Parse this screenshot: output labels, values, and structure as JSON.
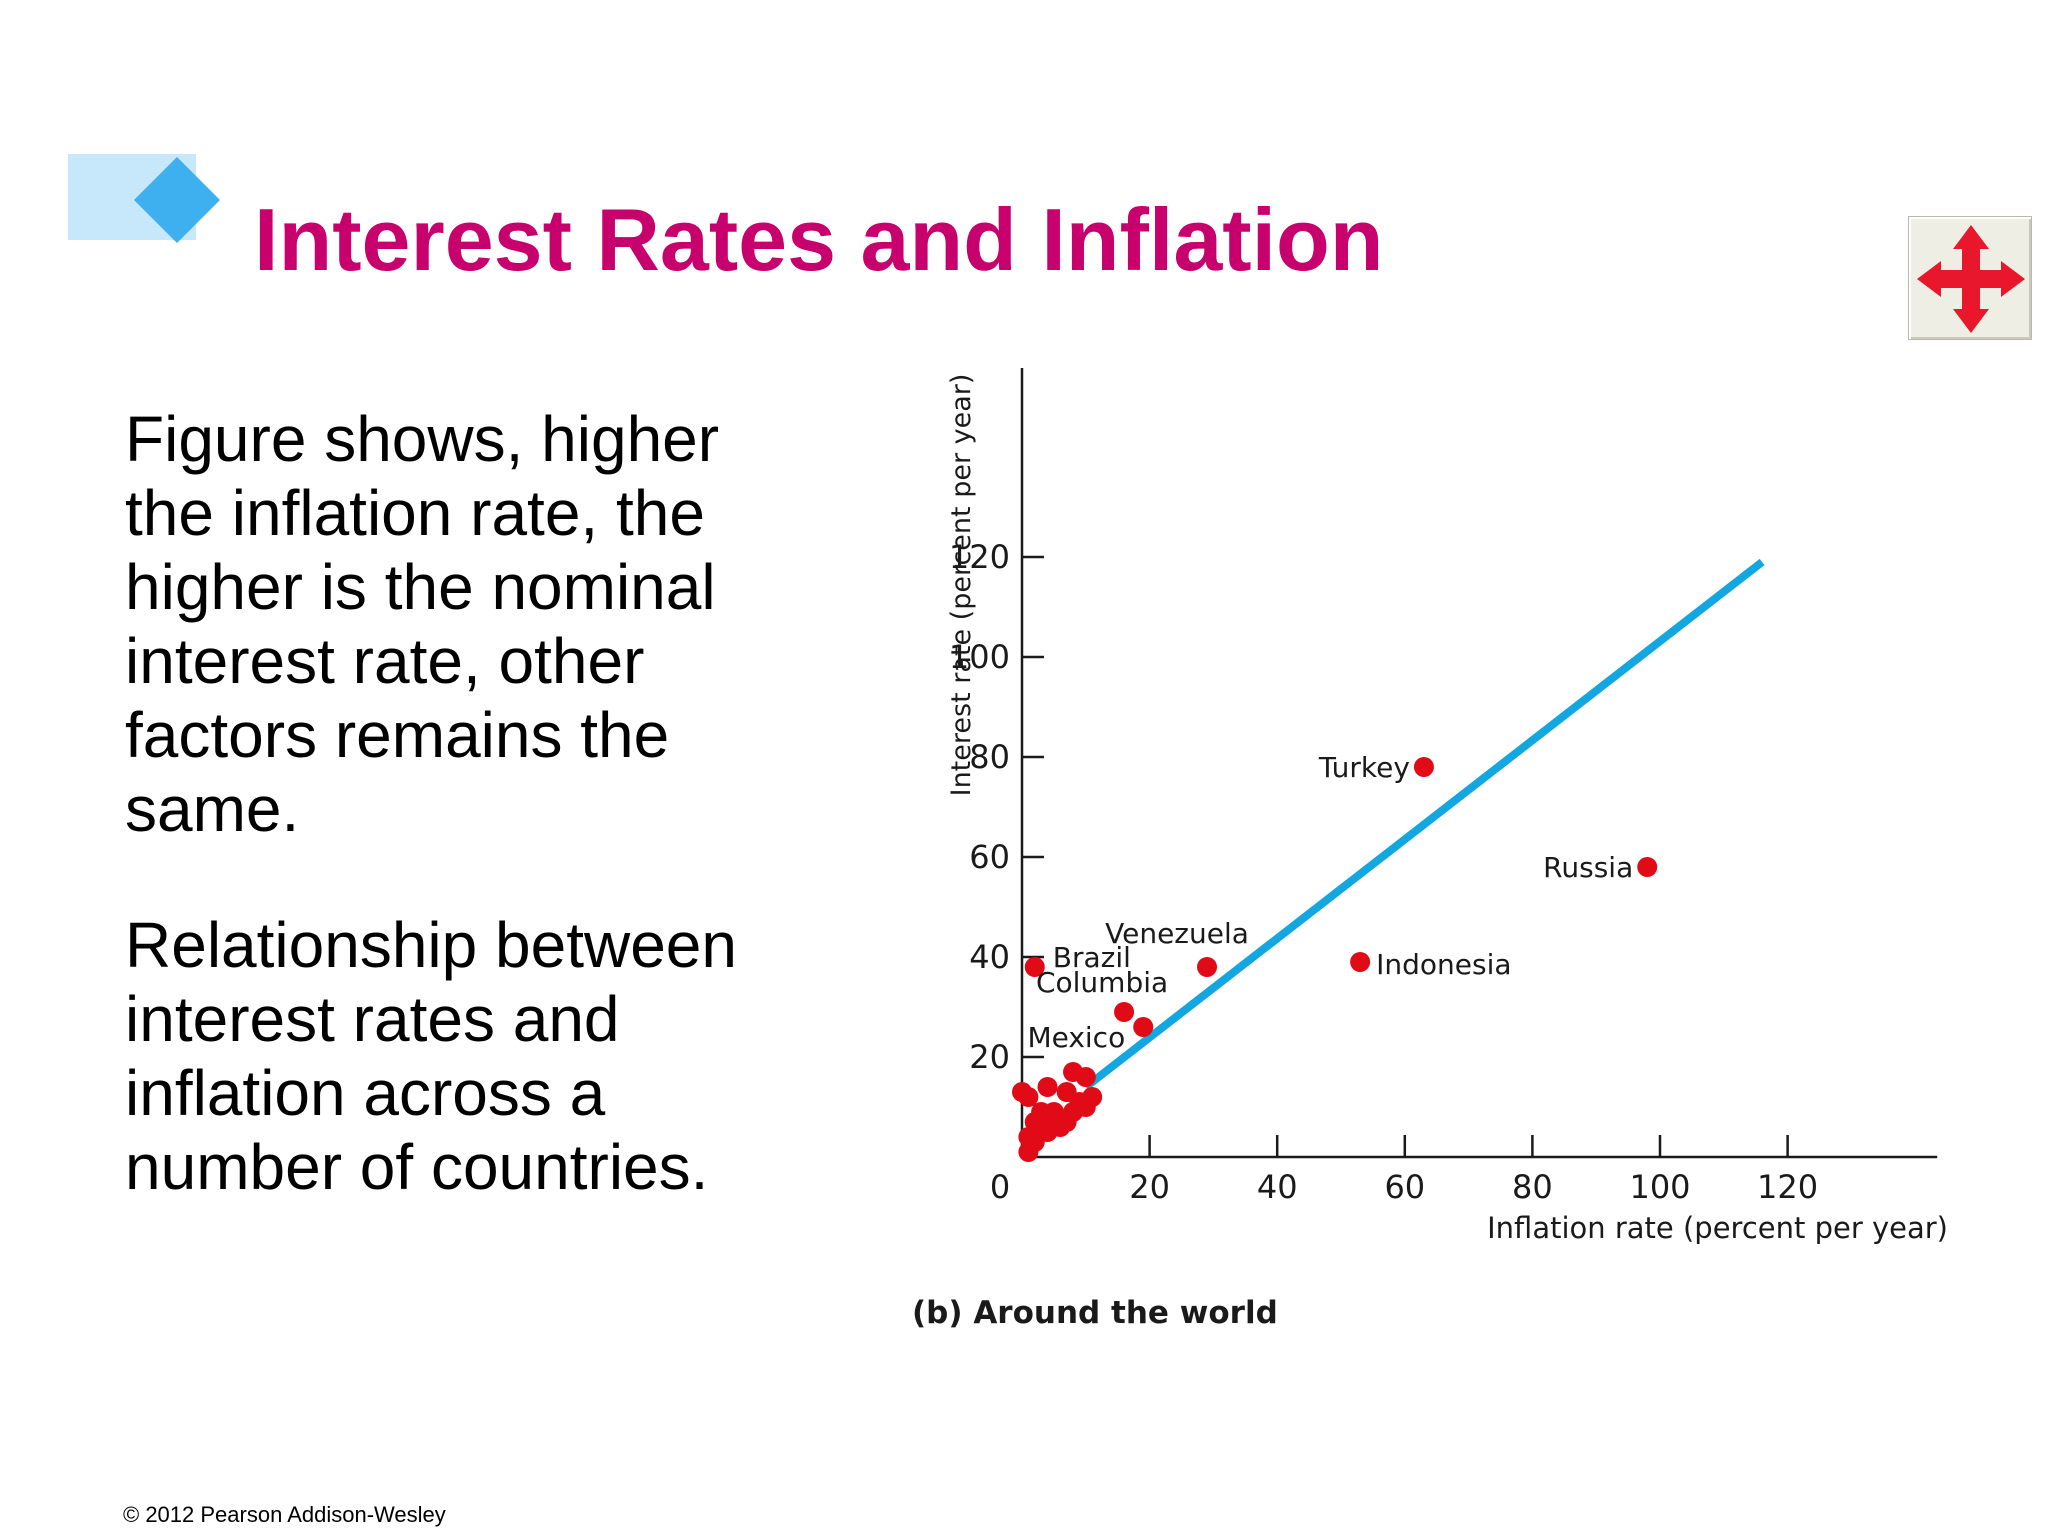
{
  "slide": {
    "title": "Interest Rates and Inflation",
    "paragraphs": [
      "Figure shows, higher the inflation rate, the higher is the nominal interest rate, other factors remains the same.",
      "Relationship between interest rates and inflation across a number of countries."
    ],
    "footer": "© 2012 Pearson Addison-Wesley",
    "nav_icon": "move-arrows-icon"
  },
  "colors": {
    "title": "#c8006e",
    "deco_bar": "#c7e7fb",
    "deco_diamond": "#3fb0ef",
    "line": "#12a7e0",
    "point": "#e10b17",
    "nav_arrows": "#e8172b"
  },
  "chart_data": {
    "type": "scatter",
    "xlabel": "Inflation rate (percent per year)",
    "ylabel": "Interest rate (percent per year)",
    "caption": "(b) Around the world",
    "xlim": [
      0,
      140
    ],
    "ylim": [
      0,
      130
    ],
    "x_ticks": [
      0,
      20,
      40,
      60,
      80,
      100,
      120
    ],
    "y_ticks": [
      20,
      40,
      60,
      80,
      100,
      120
    ],
    "grid": false,
    "line": {
      "x": [
        10,
        116
      ],
      "y": [
        14,
        119
      ]
    },
    "labeled_points": [
      {
        "name": "Turkey",
        "x": 63,
        "y": 78
      },
      {
        "name": "Russia",
        "x": 98,
        "y": 58
      },
      {
        "name": "Indonesia",
        "x": 53,
        "y": 39
      },
      {
        "name": "Venezuela",
        "x": 29,
        "y": 38
      },
      {
        "name": "Brazil",
        "x": 2,
        "y": 38
      },
      {
        "name": "Columbia",
        "x": 16,
        "y": 29
      },
      {
        "name": "Mexico",
        "x": 19,
        "y": 26
      }
    ],
    "points": [
      {
        "x": 0,
        "y": 13
      },
      {
        "x": 1,
        "y": 12
      },
      {
        "x": 4,
        "y": 14
      },
      {
        "x": 8,
        "y": 17
      },
      {
        "x": 10,
        "y": 16
      },
      {
        "x": 7,
        "y": 13
      },
      {
        "x": 9,
        "y": 11
      },
      {
        "x": 11,
        "y": 12
      },
      {
        "x": 10,
        "y": 10
      },
      {
        "x": 8,
        "y": 9
      },
      {
        "x": 5,
        "y": 9
      },
      {
        "x": 2,
        "y": 7
      },
      {
        "x": 3,
        "y": 6
      },
      {
        "x": 5,
        "y": 7
      },
      {
        "x": 4,
        "y": 5
      },
      {
        "x": 6,
        "y": 6
      },
      {
        "x": 7,
        "y": 7
      },
      {
        "x": 1,
        "y": 4
      },
      {
        "x": 2,
        "y": 3
      },
      {
        "x": 1,
        "y": 1
      },
      {
        "x": 3,
        "y": 9
      }
    ]
  }
}
